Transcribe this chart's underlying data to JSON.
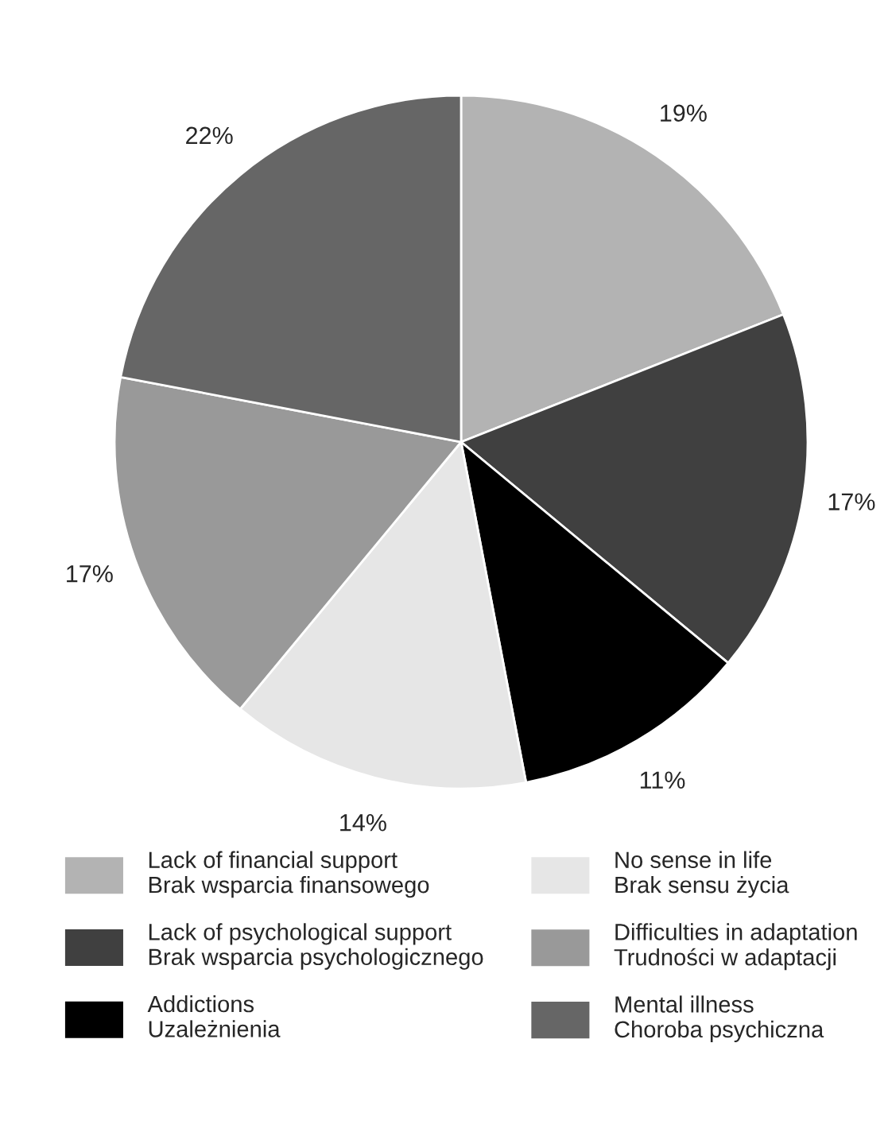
{
  "chart_data": {
    "type": "pie",
    "categories": [
      "Lack of financial support\nBrak wsparcia finansowego",
      "Lack of psychological support\nBrak wsparcia psychologicznego",
      "Addictions\nUzależnienia",
      "No sense in life\nBrak sensu życia",
      "Difficulties in adaptation\nTrudności w adaptacji",
      "Mental illness\nChoroba psychiczna"
    ],
    "values": [
      19,
      17,
      11,
      14,
      17,
      22
    ],
    "value_labels": [
      "19%",
      "17%",
      "11%",
      "14%",
      "17%",
      "22%"
    ],
    "colors": [
      "#b3b3b3",
      "#404040",
      "#000000",
      "#e6e6e6",
      "#999999",
      "#666666"
    ],
    "legend": "bottom"
  }
}
